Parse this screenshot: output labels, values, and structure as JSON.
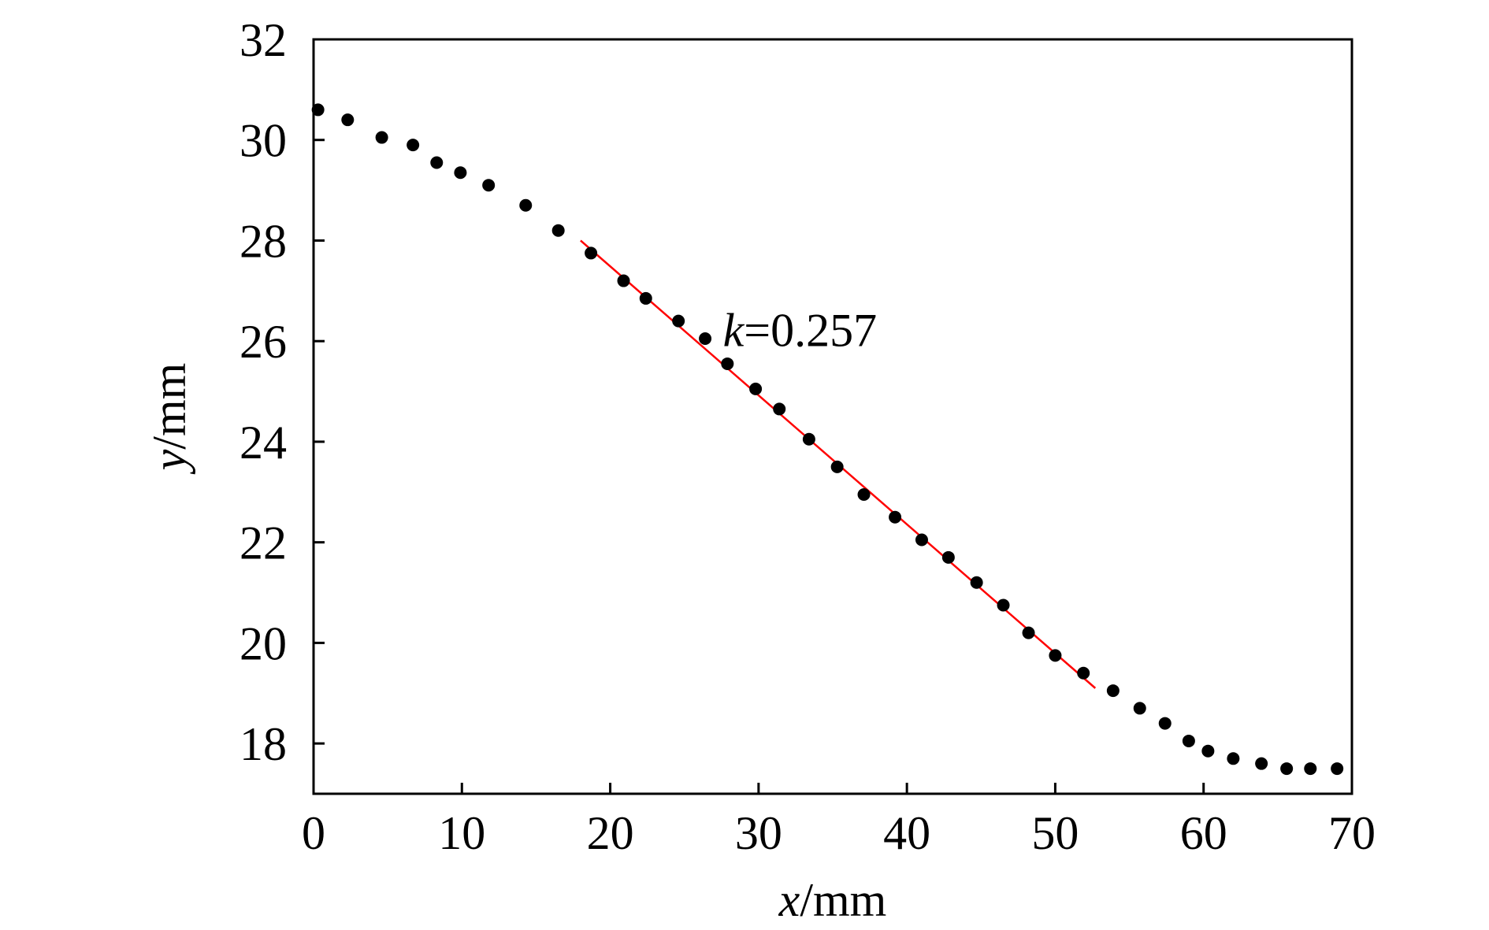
{
  "chart_data": {
    "type": "scatter",
    "title": "",
    "xlabel": {
      "var": "x",
      "unit": "/mm"
    },
    "ylabel": {
      "var": "y",
      "unit": "/mm"
    },
    "xlim": [
      0,
      70
    ],
    "ylim": [
      17,
      32
    ],
    "xticks": [
      0,
      10,
      20,
      30,
      40,
      50,
      60,
      70
    ],
    "yticks": [
      18,
      20,
      22,
      24,
      26,
      28,
      30,
      32
    ],
    "grid": false,
    "legend": "none",
    "colors": {
      "points": "#000000",
      "fit_line": "#ff0000",
      "axes": "#000000"
    },
    "series": [
      {
        "x": [
          0.3,
          2.3,
          4.6,
          6.7,
          8.3,
          9.9,
          11.8,
          14.3,
          16.5,
          18.7,
          20.9,
          22.4,
          24.6,
          26.4,
          27.9,
          29.8,
          31.4,
          33.4,
          35.3,
          37.1,
          39.2,
          41.0,
          42.8,
          44.7,
          46.5,
          48.2,
          50.0,
          51.9,
          53.9,
          55.7,
          57.4,
          59.0,
          60.3,
          62.0,
          63.9,
          65.6,
          67.2,
          69.0
        ],
        "y": [
          30.6,
          30.4,
          30.05,
          29.9,
          29.55,
          29.35,
          29.1,
          28.7,
          28.2,
          27.75,
          27.2,
          26.85,
          26.4,
          26.05,
          25.55,
          25.05,
          24.65,
          24.05,
          23.5,
          22.95,
          22.5,
          22.05,
          21.7,
          21.2,
          20.75,
          20.2,
          19.75,
          19.4,
          19.05,
          18.7,
          18.4,
          18.05,
          17.85,
          17.7,
          17.6,
          17.5,
          17.5,
          17.5
        ]
      }
    ],
    "fit_line": {
      "x": [
        18.0,
        52.7
      ],
      "y": [
        28.0,
        19.1
      ]
    },
    "annotation": {
      "var": "k",
      "text": "=0.257",
      "x": 27.6,
      "y": 25.9
    }
  }
}
